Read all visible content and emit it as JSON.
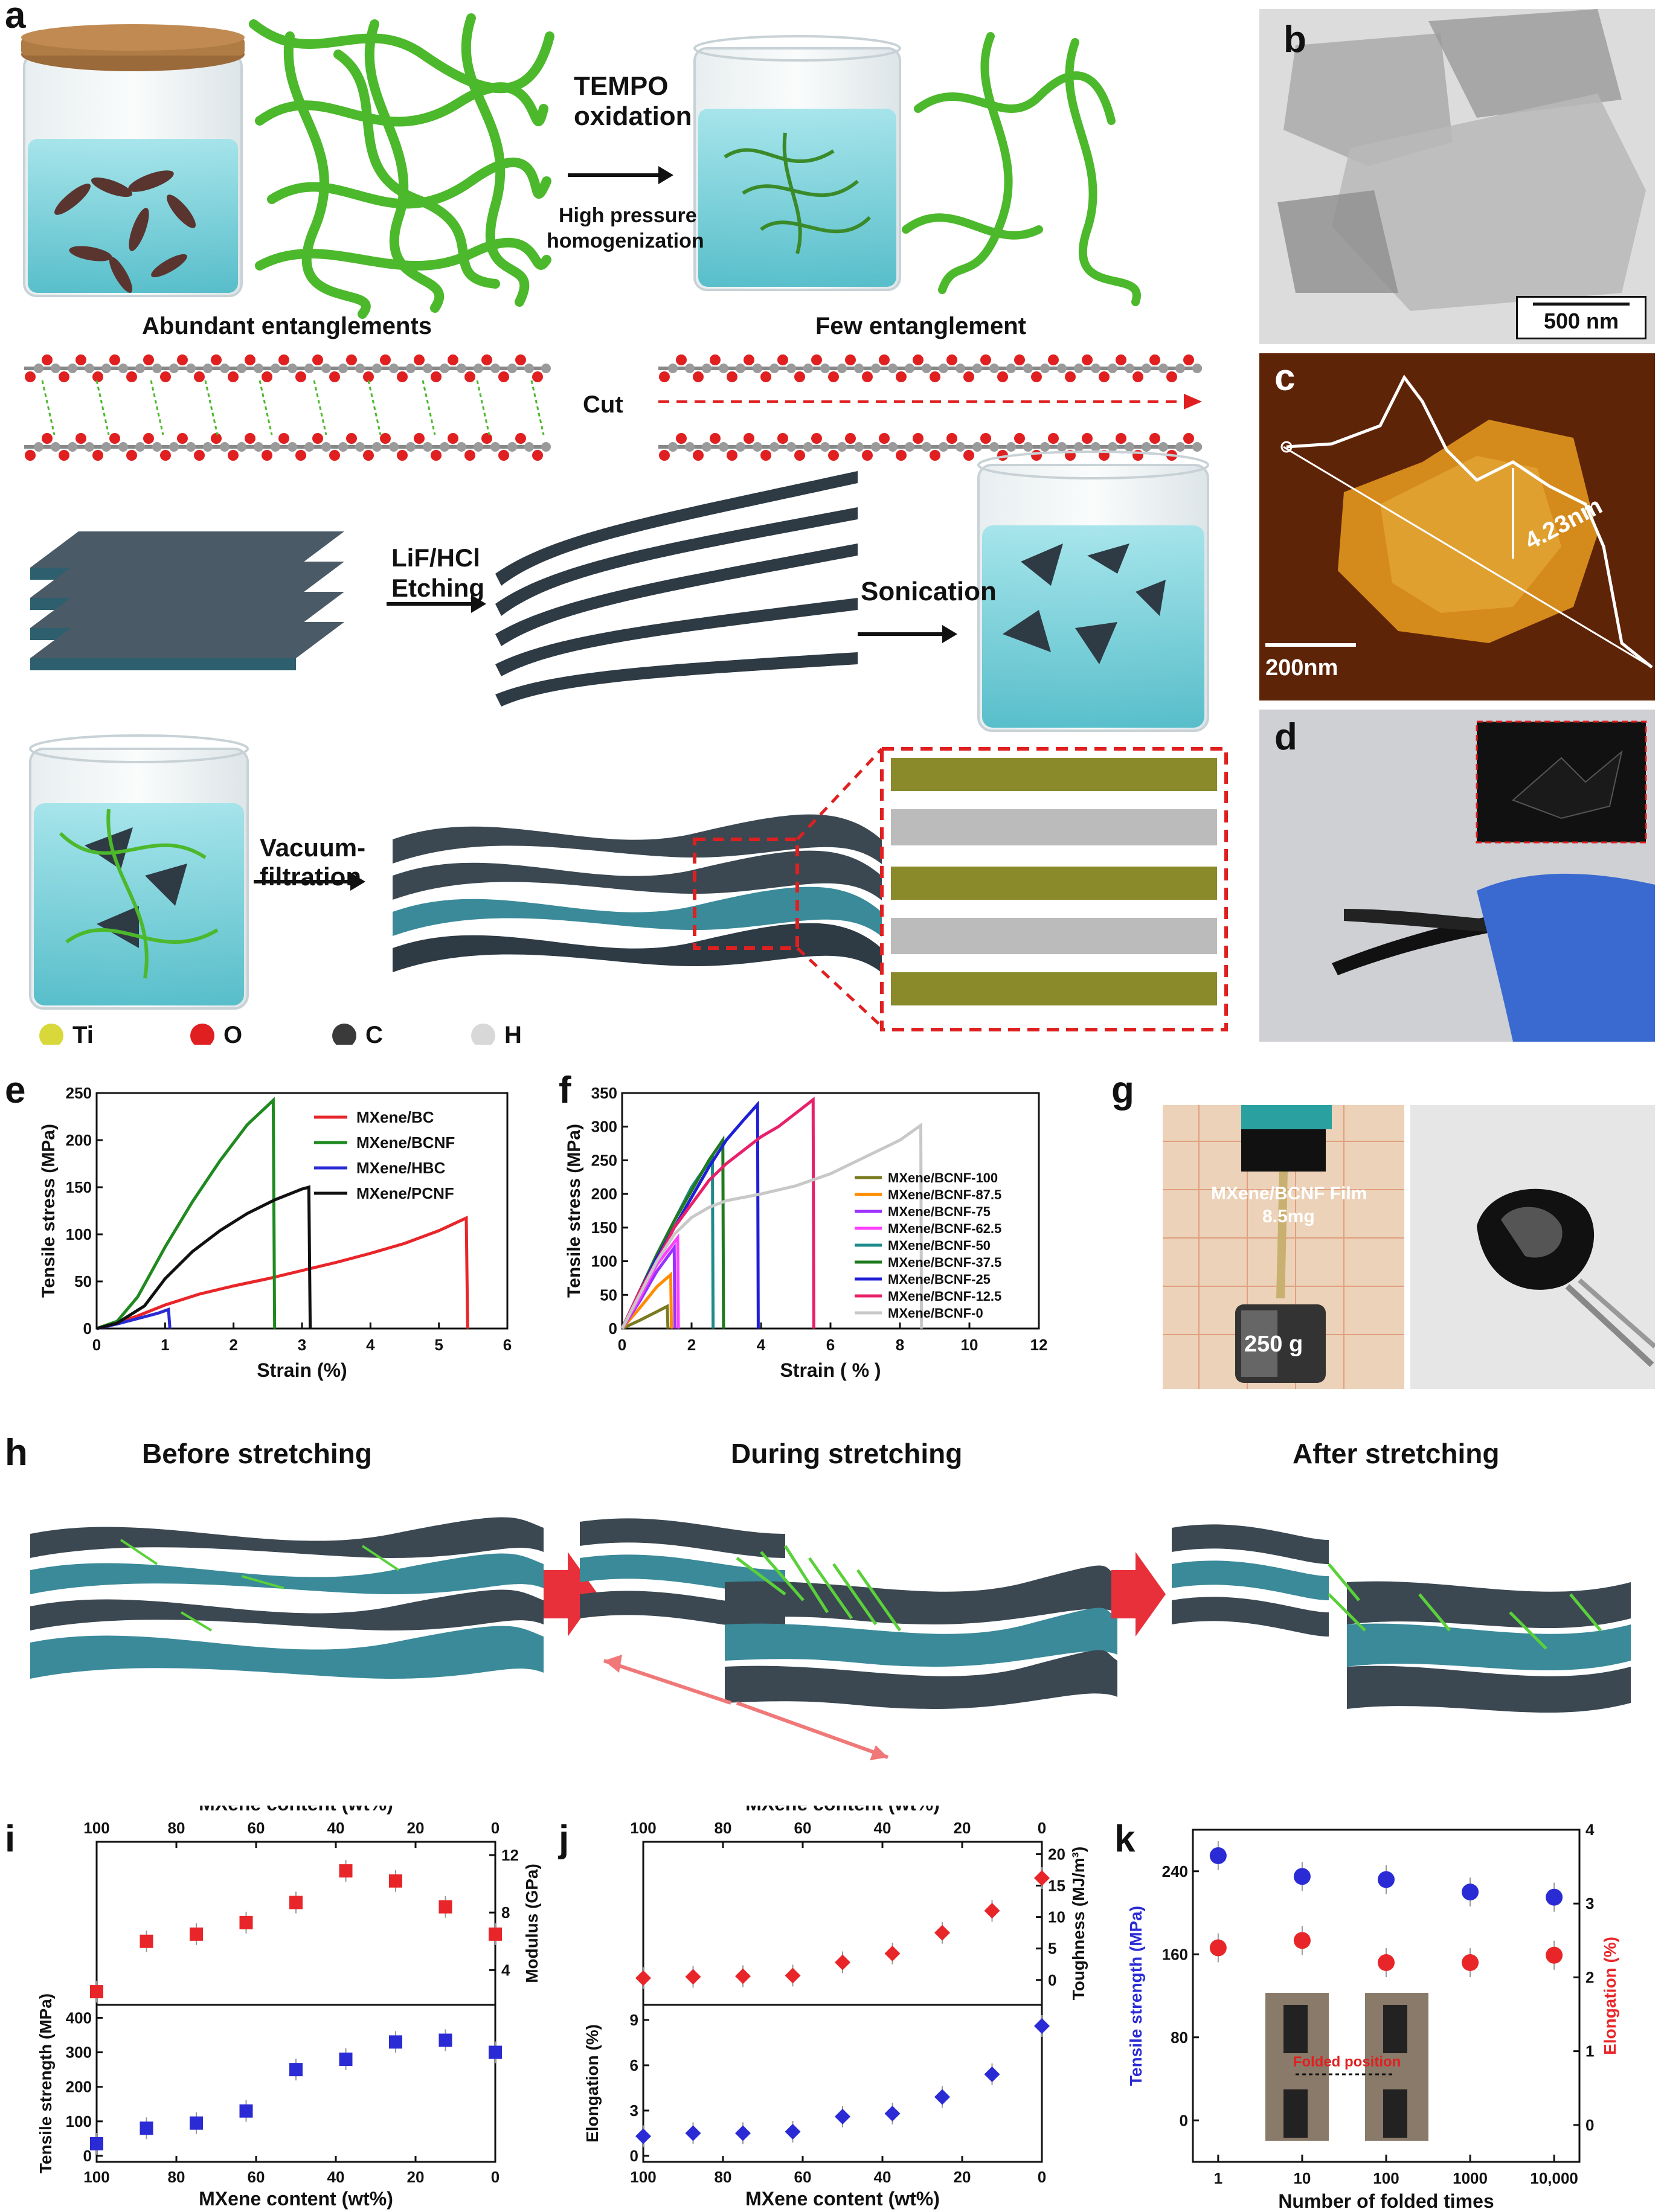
{
  "panel_labels": {
    "a": "a",
    "b": "b",
    "c": "c",
    "d": "d",
    "e": "e",
    "f": "f",
    "g": "g",
    "h": "h",
    "i": "i",
    "j": "j",
    "k": "k"
  },
  "schematic_a": {
    "tempo_line1": "TEMPO",
    "tempo_line2": "oxidation",
    "hp_line1": "High pressure",
    "hp_line2": "homogenization",
    "abundant": "Abundant entanglements",
    "few": "Few entanglement",
    "cut": "Cut",
    "etch_line1": "LiF/HCl",
    "etch_line2": "Etching",
    "sonication": "Sonication",
    "vac_line1": "Vacuum-",
    "vac_line2": "filtration",
    "legend": [
      {
        "label": "Ti",
        "color": "#d8d83a"
      },
      {
        "label": "O",
        "color": "#e02020"
      },
      {
        "label": "C",
        "color": "#3a3a3a"
      },
      {
        "label": "H",
        "color": "#d8d8d8"
      }
    ]
  },
  "panel_b": {
    "scalebar": "500 nm"
  },
  "panel_c": {
    "scalebar": "200nm",
    "height": "4.23nm"
  },
  "panel_g": {
    "film_line1": "MXene/BCNF Film",
    "film_line2": "8.5mg",
    "weight": "250 g"
  },
  "panel_h": {
    "before": "Before stretching",
    "during": "During stretching",
    "after": "After stretching"
  },
  "chart_data": [
    {
      "id": "e",
      "type": "line",
      "xlabel": "Strain (%)",
      "ylabel": "Tensile stress (MPa)",
      "xlim": [
        0,
        6
      ],
      "ylim": [
        0,
        260
      ],
      "xticks": [
        "0",
        "1",
        "2",
        "3",
        "4",
        "5",
        "6"
      ],
      "yticks": [
        "0",
        "50",
        "100",
        "150",
        "200",
        "250"
      ],
      "legend_position": "top-right",
      "series": [
        {
          "name": "MXene/BC",
          "color": "#e8262a",
          "x": [
            0,
            0.3,
            0.6,
            1.0,
            1.5,
            2.0,
            2.5,
            3.0,
            3.5,
            4.0,
            4.5,
            5.0,
            5.4,
            5.42
          ],
          "y": [
            0,
            6,
            14,
            26,
            38,
            47,
            55,
            64,
            73,
            83,
            94,
            108,
            122,
            0
          ]
        },
        {
          "name": "MXene/BCNF",
          "color": "#1f8a1f",
          "x": [
            0,
            0.3,
            0.6,
            1.0,
            1.4,
            1.8,
            2.2,
            2.58,
            2.6
          ],
          "y": [
            0,
            8,
            35,
            90,
            140,
            185,
            225,
            252,
            0
          ]
        },
        {
          "name": "MXene/HBC",
          "color": "#2b2bd6",
          "x": [
            0,
            0.3,
            0.6,
            0.9,
            1.05,
            1.07
          ],
          "y": [
            0,
            5,
            11,
            17,
            21,
            0
          ]
        },
        {
          "name": "MXene/PCNF",
          "color": "#111111",
          "x": [
            0,
            0.3,
            0.7,
            1.0,
            1.4,
            1.8,
            2.2,
            2.6,
            3.0,
            3.1,
            3.12
          ],
          "y": [
            0,
            6,
            25,
            55,
            85,
            108,
            127,
            142,
            154,
            156,
            0
          ]
        }
      ]
    },
    {
      "id": "f",
      "type": "line",
      "xlabel": "Strain ( % )",
      "ylabel": "Tensile stress (MPa)",
      "xlim": [
        0,
        12
      ],
      "ylim": [
        0,
        350
      ],
      "xticks": [
        "0",
        "2",
        "4",
        "6",
        "8",
        "10",
        "12"
      ],
      "yticks": [
        "0",
        "50",
        "100",
        "150",
        "200",
        "250",
        "300",
        "350"
      ],
      "legend_position": "bottom-right",
      "series": [
        {
          "name": "MXene/BCNF-100",
          "color": "#7a7a1e",
          "x": [
            0,
            0.5,
            1.0,
            1.3,
            1.32
          ],
          "y": [
            0,
            12,
            25,
            33,
            0
          ]
        },
        {
          "name": "MXene/BCNF-87.5",
          "color": "#ff8c00",
          "x": [
            0,
            0.5,
            1.0,
            1.4,
            1.42
          ],
          "y": [
            0,
            30,
            62,
            80,
            0
          ]
        },
        {
          "name": "MXene/BCNF-75",
          "color": "#9b30ff",
          "x": [
            0,
            0.5,
            1.0,
            1.5,
            1.52
          ],
          "y": [
            0,
            40,
            85,
            120,
            0
          ]
        },
        {
          "name": "MXene/BCNF-62.5",
          "color": "#ff40ff",
          "x": [
            0,
            0.5,
            1.0,
            1.6,
            1.62
          ],
          "y": [
            0,
            45,
            95,
            135,
            0
          ]
        },
        {
          "name": "MXene/BCNF-50",
          "color": "#1f8a8a",
          "x": [
            0,
            0.5,
            1.0,
            1.5,
            2.0,
            2.6,
            2.62
          ],
          "y": [
            0,
            55,
            110,
            160,
            210,
            255,
            0
          ]
        },
        {
          "name": "MXene/BCNF-37.5",
          "color": "#1f7a1f",
          "x": [
            0,
            0.5,
            1.0,
            1.5,
            2.0,
            2.5,
            2.9,
            2.92
          ],
          "y": [
            0,
            55,
            110,
            160,
            205,
            250,
            280,
            0
          ]
        },
        {
          "name": "MXene/BCNF-25",
          "color": "#1f1fd6",
          "x": [
            0,
            0.5,
            1.0,
            1.5,
            2.0,
            2.5,
            3.0,
            3.5,
            3.9,
            3.92
          ],
          "y": [
            0,
            55,
            105,
            150,
            195,
            240,
            280,
            310,
            333,
            0
          ]
        },
        {
          "name": "MXene/BCNF-12.5",
          "color": "#e8206a",
          "x": [
            0,
            0.5,
            1.0,
            1.5,
            2.0,
            2.5,
            3.0,
            3.5,
            4.0,
            4.5,
            5.0,
            5.5,
            5.52
          ],
          "y": [
            0,
            55,
            100,
            150,
            185,
            220,
            245,
            265,
            285,
            300,
            320,
            340,
            0
          ]
        },
        {
          "name": "MXene/BCNF-0",
          "color": "#c8c8c8",
          "x": [
            0,
            0.5,
            1.0,
            1.5,
            2.0,
            2.5,
            3.0,
            4.0,
            5.0,
            6.0,
            7.0,
            8.0,
            8.6,
            8.62
          ],
          "y": [
            0,
            50,
            100,
            140,
            165,
            180,
            190,
            200,
            212,
            230,
            255,
            280,
            302,
            0
          ]
        }
      ]
    },
    {
      "id": "i",
      "type": "scatter",
      "top_xlabel": "MXene content (wt%)",
      "xlabel": "MXene content (wt%)",
      "xlim_reversed": [
        100,
        0
      ],
      "xticks": [
        "100",
        "80",
        "60",
        "40",
        "20",
        "0"
      ],
      "upper": {
        "ylabel": "Modulus (GPa)",
        "ylim": [
          2,
          12.5
        ],
        "yticks": [
          "4",
          "8",
          "12"
        ],
        "color": "#e8262a",
        "x": [
          100,
          87.5,
          75,
          62.5,
          50,
          37.5,
          25,
          12.5,
          0
        ],
        "y": [
          2.5,
          6.0,
          6.5,
          7.3,
          8.7,
          10.9,
          10.2,
          8.4,
          6.5
        ]
      },
      "lower": {
        "ylabel": "Tensile strength (MPa)",
        "ylim": [
          0,
          420
        ],
        "yticks": [
          "0",
          "100",
          "200",
          "300",
          "400"
        ],
        "color": "#2b2bd6",
        "x": [
          100,
          87.5,
          75,
          62.5,
          50,
          37.5,
          25,
          12.5,
          0
        ],
        "y": [
          35,
          80,
          95,
          130,
          250,
          280,
          330,
          335,
          300
        ]
      }
    },
    {
      "id": "j",
      "type": "scatter",
      "top_xlabel": "MXene content (wt%)",
      "xlabel": "MXene content (wt%)",
      "xlim_reversed": [
        100,
        0
      ],
      "xticks": [
        "100",
        "80",
        "60",
        "40",
        "20",
        "0"
      ],
      "upper": {
        "ylabel": "Toughness (MJ/m³)",
        "ylim": [
          -3,
          21
        ],
        "yticks": [
          "0",
          "5",
          "10",
          "15",
          "20"
        ],
        "color": "#e8262a",
        "x": [
          100,
          87.5,
          75,
          62.5,
          50,
          37.5,
          25,
          12.5,
          0
        ],
        "y": [
          0.3,
          0.5,
          0.6,
          0.7,
          2.8,
          4.2,
          7.5,
          11.0,
          16.2
        ]
      },
      "lower": {
        "ylabel": "Elongation (%)",
        "ylim": [
          0,
          9.6
        ],
        "yticks": [
          "0",
          "3",
          "6",
          "9"
        ],
        "color": "#2b2bd6",
        "x": [
          100,
          87.5,
          75,
          62.5,
          50,
          37.5,
          25,
          12.5,
          0
        ],
        "y": [
          1.3,
          1.5,
          1.5,
          1.6,
          2.6,
          2.8,
          3.9,
          5.4,
          8.6
        ]
      }
    },
    {
      "id": "k",
      "type": "scatter",
      "xlabel": "Number of folded times",
      "xlim_log": [
        0.5,
        20000
      ],
      "xticks": [
        "1",
        "10",
        "100",
        "1000",
        "10,000"
      ],
      "left": {
        "ylabel": "Tensile strength (MPa)",
        "ylim": [
          -40,
          280
        ],
        "yticks": [
          "0",
          "80",
          "160",
          "240"
        ],
        "color": "#2b2bd6",
        "x": [
          1,
          10,
          100,
          1000,
          10000
        ],
        "y": [
          255,
          235,
          232,
          220,
          215
        ]
      },
      "right": {
        "ylabel": "Elongation (%)",
        "ylim": [
          -0.5,
          4
        ],
        "yticks": [
          "0",
          "1",
          "2",
          "3",
          "4"
        ],
        "color": "#e8262a",
        "x": [
          1,
          10,
          100,
          1000,
          10000
        ],
        "y": [
          2.4,
          2.5,
          2.2,
          2.2,
          2.3
        ]
      },
      "inset_label": "Folded position"
    }
  ]
}
